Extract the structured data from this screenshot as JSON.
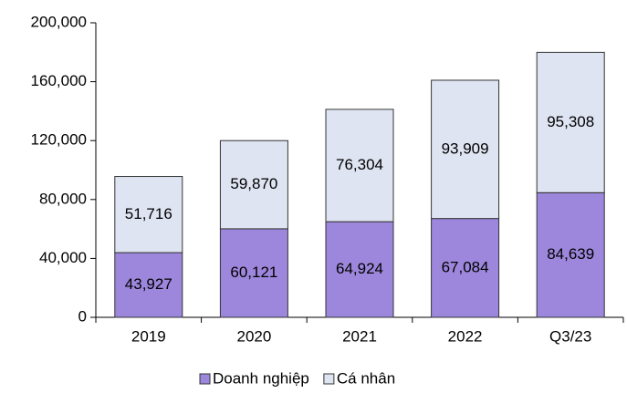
{
  "chart_data": {
    "type": "stacked_bar",
    "categories": [
      "2019",
      "2020",
      "2021",
      "2022",
      "Q3/23"
    ],
    "series": [
      {
        "name": "Doanh nghiệp",
        "color": "#9d87dc",
        "values": [
          43927,
          60121,
          64924,
          67084,
          84639
        ],
        "value_labels": [
          "43,927",
          "60,121",
          "64,924",
          "67,084",
          "84,639"
        ]
      },
      {
        "name": "Cá nhân",
        "color": "#dfe4f2",
        "values": [
          51716,
          59870,
          76304,
          93909,
          95308
        ],
        "value_labels": [
          "51,716",
          "59,870",
          "76,304",
          "93,909",
          "95,308"
        ]
      }
    ],
    "ylim": [
      0,
      200000
    ],
    "yticks": [
      0,
      {
        "value": 40000,
        "label": "40,000"
      },
      {
        "value": 80000,
        "label": "80,000"
      },
      {
        "value": 120000,
        "label": "120,000"
      },
      {
        "value": 160000,
        "label": "160,000"
      },
      {
        "value": 200000,
        "label": "200,000"
      }
    ],
    "legend": "bottom"
  }
}
